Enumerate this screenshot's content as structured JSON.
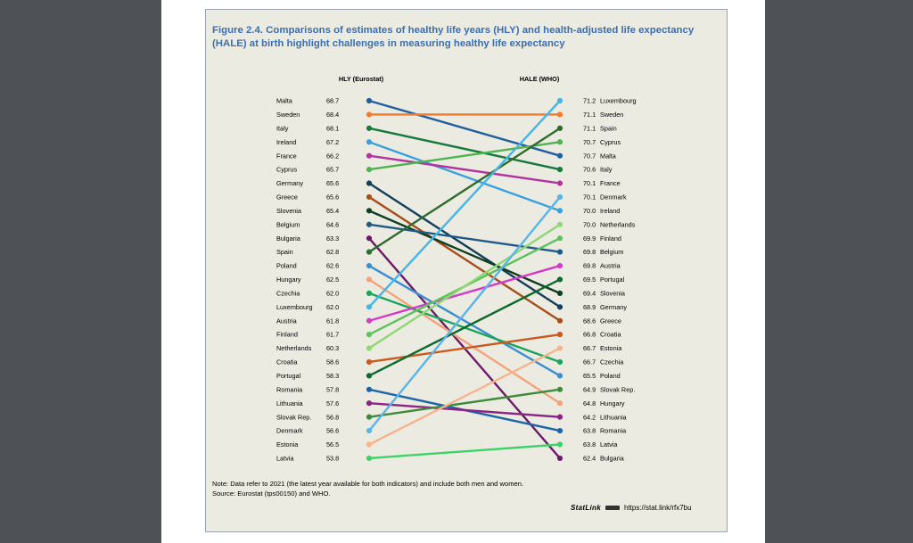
{
  "figure": {
    "title": "Figure 2.4. Comparisons of estimates of healthy life years (HLY) and health-adjusted life expectancy (HALE) at birth highlight challenges in measuring healthy life expectancy",
    "note": "Note: Data refer to 2021 (the latest year available for both indicators) and include both men and women.",
    "source": "Source: Eurostat (tps00150) and WHO.",
    "statlink_brand": "StatLink",
    "statlink_url": "https://stat.link/rfx7bu"
  },
  "chart_data": {
    "type": "line",
    "subtype": "slope",
    "left_axis_label": "HLY (Eurostat)",
    "right_axis_label": "HALE (WHO)",
    "left_order": [
      "Malta",
      "Sweden",
      "Italy",
      "Ireland",
      "France",
      "Cyprus",
      "Germany",
      "Greece",
      "Slovenia",
      "Belgium",
      "Bulgaria",
      "Spain",
      "Poland",
      "Hungary",
      "Czechia",
      "Luxembourg",
      "Austria",
      "Finland",
      "Netherlands",
      "Croatia",
      "Portugal",
      "Romania",
      "Lithuania",
      "Slovak Rep.",
      "Denmark",
      "Estonia",
      "Latvia"
    ],
    "right_order": [
      "Luxembourg",
      "Sweden",
      "Spain",
      "Cyprus",
      "Malta",
      "Italy",
      "France",
      "Denmark",
      "Ireland",
      "Netherlands",
      "Finland",
      "Belgium",
      "Austria",
      "Portugal",
      "Slovenia",
      "Germany",
      "Greece",
      "Croatia",
      "Estonia",
      "Czechia",
      "Poland",
      "Slovak Rep.",
      "Hungary",
      "Lithuania",
      "Romania",
      "Latvia",
      "Bulgaria"
    ],
    "series": [
      {
        "name": "Malta",
        "hly": "68.7",
        "hale": "70.7",
        "color": "#1f5fa0"
      },
      {
        "name": "Sweden",
        "hly": "68.4",
        "hale": "71.1",
        "color": "#f07b2c"
      },
      {
        "name": "Italy",
        "hly": "68.1",
        "hale": "70.6",
        "color": "#167a3c"
      },
      {
        "name": "Ireland",
        "hly": "67.2",
        "hale": "70.0",
        "color": "#3aa0dc"
      },
      {
        "name": "France",
        "hly": "66.2",
        "hale": "70.1",
        "color": "#b2349e"
      },
      {
        "name": "Cyprus",
        "hly": "65.7",
        "hale": "70.7",
        "color": "#4fb350"
      },
      {
        "name": "Germany",
        "hly": "65.6",
        "hale": "68.9",
        "color": "#123e5a"
      },
      {
        "name": "Greece",
        "hly": "65.6",
        "hale": "68.6",
        "color": "#a84e1a"
      },
      {
        "name": "Slovenia",
        "hly": "65.4",
        "hale": "69.4",
        "color": "#0f3d22"
      },
      {
        "name": "Belgium",
        "hly": "64.6",
        "hale": "69.8",
        "color": "#1e5a88"
      },
      {
        "name": "Bulgaria",
        "hly": "63.3",
        "hale": "62.4",
        "color": "#6c1b6a"
      },
      {
        "name": "Spain",
        "hly": "62.8",
        "hale": "71.1",
        "color": "#2e6b2e"
      },
      {
        "name": "Poland",
        "hly": "62.6",
        "hale": "65.5",
        "color": "#3b8fd0"
      },
      {
        "name": "Hungary",
        "hly": "62.5",
        "hale": "64.8",
        "color": "#f4a27a"
      },
      {
        "name": "Czechia",
        "hly": "62.0",
        "hale": "66.7",
        "color": "#1aa55c"
      },
      {
        "name": "Luxembourg",
        "hly": "62.0",
        "hale": "71.2",
        "color": "#46b5e6"
      },
      {
        "name": "Austria",
        "hly": "61.8",
        "hale": "69.8",
        "color": "#d43ac8"
      },
      {
        "name": "Finland",
        "hly": "61.7",
        "hale": "69.9",
        "color": "#5cc25c"
      },
      {
        "name": "Netherlands",
        "hly": "60.3",
        "hale": "70.0",
        "color": "#8fd676"
      },
      {
        "name": "Croatia",
        "hly": "58.6",
        "hale": "66.8",
        "color": "#c85a1e"
      },
      {
        "name": "Portugal",
        "hly": "58.3",
        "hale": "69.5",
        "color": "#0b6b2e"
      },
      {
        "name": "Romania",
        "hly": "57.8",
        "hale": "63.8",
        "color": "#1d64a8"
      },
      {
        "name": "Lithuania",
        "hly": "57.6",
        "hale": "64.2",
        "color": "#8a2482"
      },
      {
        "name": "Slovak Rep.",
        "hly": "56.8",
        "hale": "64.9",
        "color": "#3f8a3a"
      },
      {
        "name": "Denmark",
        "hly": "56.6",
        "hale": "70.1",
        "color": "#5ab4ea"
      },
      {
        "name": "Estonia",
        "hly": "56.5",
        "hale": "66.7",
        "color": "#f6b48e"
      },
      {
        "name": "Latvia",
        "hly": "53.8",
        "hale": "63.8",
        "color": "#3ed36a"
      }
    ]
  }
}
